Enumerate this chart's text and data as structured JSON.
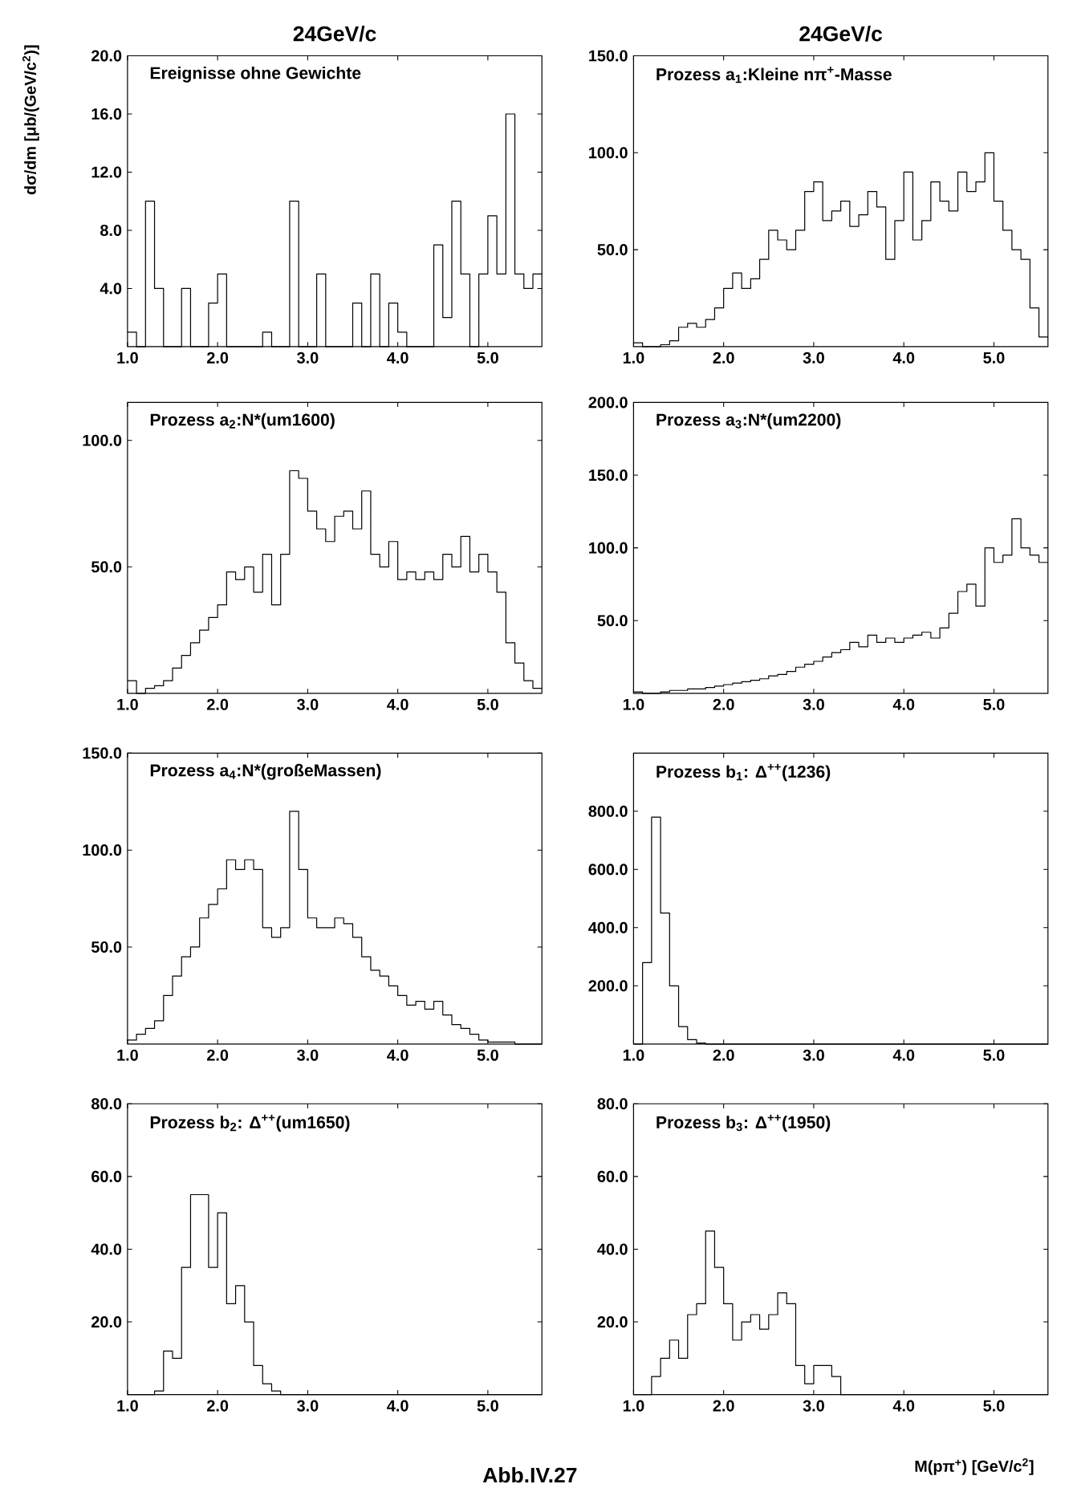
{
  "chart_data": [
    {
      "type": "histogram",
      "title": "Ereignisse ohne Gewichte",
      "ylabel": "dσ/dm [μb/(GeV/c$^{2}$)]",
      "annotations": [
        "24GeV/c"
      ],
      "bins": [
        1.0,
        1.1,
        1.2,
        1.3,
        1.4,
        1.5,
        1.6,
        1.7,
        1.8,
        1.9,
        2.0,
        2.1,
        2.2,
        2.3,
        2.4,
        2.5,
        2.6,
        2.7,
        2.8,
        2.9,
        3.0,
        3.1,
        3.2,
        3.3,
        3.4,
        3.5,
        3.6,
        3.7,
        3.8,
        3.9,
        4.0,
        4.1,
        4.2,
        4.3,
        4.4,
        4.5,
        4.6,
        4.7,
        4.8,
        4.9,
        5.0,
        5.1,
        5.2,
        5.3,
        5.4,
        5.5,
        5.6
      ],
      "values": [
        1,
        0,
        10,
        4,
        0,
        0,
        4,
        0,
        0,
        3,
        5,
        0,
        0,
        0,
        0,
        1,
        0,
        0,
        10,
        0,
        0,
        5,
        0,
        0,
        0,
        3,
        0,
        5,
        0,
        3,
        1,
        0,
        0,
        0,
        7,
        2,
        10,
        5,
        0,
        5,
        9,
        5,
        16,
        5,
        4,
        5
      ],
      "xlim": [
        1.0,
        5.6
      ],
      "ylim": [
        0,
        20
      ],
      "xticks": [
        {
          "value": 1,
          "label": "1.0"
        },
        {
          "value": 2,
          "label": "2.0"
        },
        {
          "value": 3,
          "label": "3.0"
        },
        {
          "value": 4,
          "label": "4.0"
        },
        {
          "value": 5,
          "label": "5.0"
        }
      ],
      "yticks": [
        {
          "value": 4,
          "label": "4.0"
        },
        {
          "value": 8,
          "label": "8.0"
        },
        {
          "value": 12,
          "label": "12.0"
        },
        {
          "value": 16,
          "label": "16.0"
        },
        {
          "value": 20,
          "label": "20.0"
        }
      ]
    },
    {
      "type": "histogram",
      "title": "Prozess a$_{1}$:Kleine nπ$^{+}$-Masse",
      "annotations": [
        "24GeV/c"
      ],
      "bins": [
        1.0,
        1.1,
        1.2,
        1.3,
        1.4,
        1.5,
        1.6,
        1.7,
        1.8,
        1.9,
        2.0,
        2.1,
        2.2,
        2.3,
        2.4,
        2.5,
        2.6,
        2.7,
        2.8,
        2.9,
        3.0,
        3.1,
        3.2,
        3.3,
        3.4,
        3.5,
        3.6,
        3.7,
        3.8,
        3.9,
        4.0,
        4.1,
        4.2,
        4.3,
        4.4,
        4.5,
        4.6,
        4.7,
        4.8,
        4.9,
        5.0,
        5.1,
        5.2,
        5.3,
        5.4,
        5.5,
        5.6
      ],
      "values": [
        2,
        0,
        0,
        1,
        3,
        10,
        12,
        10,
        14,
        20,
        30,
        38,
        30,
        35,
        45,
        60,
        55,
        50,
        60,
        80,
        85,
        65,
        70,
        75,
        62,
        68,
        80,
        72,
        45,
        65,
        90,
        55,
        65,
        85,
        75,
        70,
        90,
        80,
        85,
        100,
        75,
        60,
        50,
        45,
        20,
        5
      ],
      "xlim": [
        1.0,
        5.6
      ],
      "ylim": [
        0,
        150
      ],
      "xticks": [
        {
          "value": 1,
          "label": "1.0"
        },
        {
          "value": 2,
          "label": "2.0"
        },
        {
          "value": 3,
          "label": "3.0"
        },
        {
          "value": 4,
          "label": "4.0"
        },
        {
          "value": 5,
          "label": "5.0"
        }
      ],
      "yticks": [
        {
          "value": 50,
          "label": "50.0"
        },
        {
          "value": 100,
          "label": "100.0"
        },
        {
          "value": 150,
          "label": "150.0"
        }
      ]
    },
    {
      "type": "histogram",
      "title": "Prozess a$_{2}$:N*(um1600)",
      "bins": [
        1.0,
        1.1,
        1.2,
        1.3,
        1.4,
        1.5,
        1.6,
        1.7,
        1.8,
        1.9,
        2.0,
        2.1,
        2.2,
        2.3,
        2.4,
        2.5,
        2.6,
        2.7,
        2.8,
        2.9,
        3.0,
        3.1,
        3.2,
        3.3,
        3.4,
        3.5,
        3.6,
        3.7,
        3.8,
        3.9,
        4.0,
        4.1,
        4.2,
        4.3,
        4.4,
        4.5,
        4.6,
        4.7,
        4.8,
        4.9,
        5.0,
        5.1,
        5.2,
        5.3,
        5.4,
        5.5,
        5.6
      ],
      "values": [
        5,
        0,
        2,
        3,
        5,
        10,
        15,
        20,
        25,
        30,
        35,
        48,
        45,
        50,
        40,
        55,
        35,
        55,
        88,
        85,
        72,
        65,
        60,
        70,
        72,
        65,
        80,
        55,
        50,
        60,
        45,
        48,
        45,
        48,
        45,
        55,
        50,
        62,
        48,
        55,
        48,
        40,
        20,
        12,
        5,
        2
      ],
      "xlim": [
        1.0,
        5.6
      ],
      "ylim": [
        0,
        115
      ],
      "xticks": [
        {
          "value": 1,
          "label": "1.0"
        },
        {
          "value": 2,
          "label": "2.0"
        },
        {
          "value": 3,
          "label": "3.0"
        },
        {
          "value": 4,
          "label": "4.0"
        },
        {
          "value": 5,
          "label": "5.0"
        }
      ],
      "yticks": [
        {
          "value": 50,
          "label": "50.0"
        },
        {
          "value": 100,
          "label": "100.0"
        }
      ]
    },
    {
      "type": "histogram",
      "title": "Prozess a$_{3}$:N*(um2200)",
      "bins": [
        1.0,
        1.1,
        1.2,
        1.3,
        1.4,
        1.5,
        1.6,
        1.7,
        1.8,
        1.9,
        2.0,
        2.1,
        2.2,
        2.3,
        2.4,
        2.5,
        2.6,
        2.7,
        2.8,
        2.9,
        3.0,
        3.1,
        3.2,
        3.3,
        3.4,
        3.5,
        3.6,
        3.7,
        3.8,
        3.9,
        4.0,
        4.1,
        4.2,
        4.3,
        4.4,
        4.5,
        4.6,
        4.7,
        4.8,
        4.9,
        5.0,
        5.1,
        5.2,
        5.3,
        5.4,
        5.5,
        5.6
      ],
      "values": [
        1,
        0,
        0,
        1,
        2,
        2,
        3,
        3,
        4,
        5,
        6,
        7,
        8,
        9,
        10,
        12,
        13,
        15,
        18,
        20,
        22,
        25,
        28,
        30,
        35,
        32,
        40,
        35,
        38,
        35,
        38,
        40,
        42,
        38,
        45,
        55,
        70,
        75,
        60,
        100,
        90,
        95,
        120,
        100,
        95,
        90
      ],
      "xlim": [
        1.0,
        5.6
      ],
      "ylim": [
        0,
        200
      ],
      "xticks": [
        {
          "value": 1,
          "label": "1.0"
        },
        {
          "value": 2,
          "label": "2.0"
        },
        {
          "value": 3,
          "label": "3.0"
        },
        {
          "value": 4,
          "label": "4.0"
        },
        {
          "value": 5,
          "label": "5.0"
        }
      ],
      "yticks": [
        {
          "value": 50,
          "label": "50.0"
        },
        {
          "value": 100,
          "label": "100.0"
        },
        {
          "value": 150,
          "label": "150.0"
        },
        {
          "value": 200,
          "label": "200.0"
        }
      ]
    },
    {
      "type": "histogram",
      "title": "Prozess a$_{4}$:N*(großeMassen)",
      "bins": [
        1.0,
        1.1,
        1.2,
        1.3,
        1.4,
        1.5,
        1.6,
        1.7,
        1.8,
        1.9,
        2.0,
        2.1,
        2.2,
        2.3,
        2.4,
        2.5,
        2.6,
        2.7,
        2.8,
        2.9,
        3.0,
        3.1,
        3.2,
        3.3,
        3.4,
        3.5,
        3.6,
        3.7,
        3.8,
        3.9,
        4.0,
        4.1,
        4.2,
        4.3,
        4.4,
        4.5,
        4.6,
        4.7,
        4.8,
        4.9,
        5.0,
        5.1,
        5.2,
        5.3,
        5.4,
        5.5,
        5.6
      ],
      "values": [
        2,
        5,
        8,
        12,
        25,
        35,
        45,
        50,
        65,
        72,
        80,
        95,
        90,
        95,
        90,
        60,
        55,
        60,
        120,
        90,
        65,
        60,
        60,
        65,
        62,
        55,
        45,
        38,
        35,
        30,
        25,
        20,
        22,
        18,
        22,
        15,
        10,
        8,
        5,
        2,
        1,
        1,
        1,
        0,
        0,
        0
      ],
      "xlim": [
        1.0,
        5.6
      ],
      "ylim": [
        0,
        150
      ],
      "xticks": [
        {
          "value": 1,
          "label": "1.0"
        },
        {
          "value": 2,
          "label": "2.0"
        },
        {
          "value": 3,
          "label": "3.0"
        },
        {
          "value": 4,
          "label": "4.0"
        },
        {
          "value": 5,
          "label": "5.0"
        }
      ],
      "yticks": [
        {
          "value": 50,
          "label": "50.0"
        },
        {
          "value": 100,
          "label": "100.0"
        },
        {
          "value": 150,
          "label": "150.0"
        }
      ]
    },
    {
      "type": "histogram",
      "title": "Prozess b$_{1}$: Δ$^{++}$(1236)",
      "bins": [
        1.0,
        1.1,
        1.2,
        1.3,
        1.4,
        1.5,
        1.6,
        1.7,
        1.8,
        1.9,
        2.0,
        2.1,
        2.2,
        2.3,
        2.4,
        2.5,
        2.6,
        2.7,
        2.8,
        2.9,
        3.0,
        3.1,
        3.2,
        3.3,
        3.4,
        3.5,
        3.6,
        3.7,
        3.8,
        3.9,
        4.0,
        4.1,
        4.2,
        4.3,
        4.4,
        4.5,
        4.6,
        4.7,
        4.8,
        4.9,
        5.0,
        5.1,
        5.2,
        5.3,
        5.4,
        5.5,
        5.6
      ],
      "values": [
        0,
        280,
        780,
        450,
        200,
        60,
        15,
        3,
        0,
        0,
        0,
        0,
        0,
        0,
        0,
        0,
        0,
        0,
        0,
        0,
        0,
        0,
        0,
        0,
        0,
        0,
        0,
        0,
        0,
        0,
        0,
        0,
        0,
        0,
        0,
        0,
        0,
        0,
        0,
        0,
        0,
        0,
        0,
        0,
        0,
        0
      ],
      "xlim": [
        1.0,
        5.6
      ],
      "ylim": [
        0,
        1000
      ],
      "xticks": [
        {
          "value": 1,
          "label": "1.0"
        },
        {
          "value": 2,
          "label": "2.0"
        },
        {
          "value": 3,
          "label": "3.0"
        },
        {
          "value": 4,
          "label": "4.0"
        },
        {
          "value": 5,
          "label": "5.0"
        }
      ],
      "yticks": [
        {
          "value": 200,
          "label": "200.0"
        },
        {
          "value": 400,
          "label": "400.0"
        },
        {
          "value": 600,
          "label": "600.0"
        },
        {
          "value": 800,
          "label": "800.0"
        }
      ]
    },
    {
      "type": "histogram",
      "title": "Prozess b$_{2}$: Δ$^{++}$(um1650)",
      "bins": [
        1.0,
        1.1,
        1.2,
        1.3,
        1.4,
        1.5,
        1.6,
        1.7,
        1.8,
        1.9,
        2.0,
        2.1,
        2.2,
        2.3,
        2.4,
        2.5,
        2.6,
        2.7,
        2.8,
        2.9,
        3.0,
        3.1,
        3.2,
        3.3,
        3.4,
        3.5,
        3.6,
        3.7,
        3.8,
        3.9,
        4.0,
        4.1,
        4.2,
        4.3,
        4.4,
        4.5,
        4.6,
        4.7,
        4.8,
        4.9,
        5.0,
        5.1,
        5.2,
        5.3,
        5.4,
        5.5,
        5.6
      ],
      "values": [
        0,
        0,
        0,
        1,
        12,
        10,
        35,
        55,
        55,
        35,
        50,
        25,
        30,
        20,
        8,
        3,
        1,
        0,
        0,
        0,
        0,
        0,
        0,
        0,
        0,
        0,
        0,
        0,
        0,
        0,
        0,
        0,
        0,
        0,
        0,
        0,
        0,
        0,
        0,
        0,
        0,
        0,
        0,
        0,
        0,
        0
      ],
      "xlim": [
        1.0,
        5.6
      ],
      "ylim": [
        0,
        80
      ],
      "xticks": [
        {
          "value": 1,
          "label": "1.0"
        },
        {
          "value": 2,
          "label": "2.0"
        },
        {
          "value": 3,
          "label": "3.0"
        },
        {
          "value": 4,
          "label": "4.0"
        },
        {
          "value": 5,
          "label": "5.0"
        }
      ],
      "yticks": [
        {
          "value": 20,
          "label": "20.0"
        },
        {
          "value": 40,
          "label": "40.0"
        },
        {
          "value": 60,
          "label": "60.0"
        },
        {
          "value": 80,
          "label": "80.0"
        }
      ]
    },
    {
      "type": "histogram",
      "title": "Prozess b$_{3}$: Δ$^{++}$(1950)",
      "xlabel": "M(pπ$^{+}$) [GeV/c$^{2}$]",
      "annotations": [
        "Abb.IV.27"
      ],
      "bins": [
        1.0,
        1.1,
        1.2,
        1.3,
        1.4,
        1.5,
        1.6,
        1.7,
        1.8,
        1.9,
        2.0,
        2.1,
        2.2,
        2.3,
        2.4,
        2.5,
        2.6,
        2.7,
        2.8,
        2.9,
        3.0,
        3.1,
        3.2,
        3.3,
        3.4,
        3.5,
        3.6,
        3.7,
        3.8,
        3.9,
        4.0,
        4.1,
        4.2,
        4.3,
        4.4,
        4.5,
        4.6,
        4.7,
        4.8,
        4.9,
        5.0,
        5.1,
        5.2,
        5.3,
        5.4,
        5.5,
        5.6
      ],
      "values": [
        0,
        0,
        5,
        10,
        15,
        10,
        22,
        25,
        45,
        35,
        25,
        15,
        20,
        22,
        18,
        22,
        28,
        25,
        8,
        3,
        8,
        8,
        5,
        0,
        0,
        0,
        0,
        0,
        0,
        0,
        0,
        0,
        0,
        0,
        0,
        0,
        0,
        0,
        0,
        0,
        0,
        0,
        0,
        0,
        0,
        0
      ],
      "xlim": [
        1.0,
        5.6
      ],
      "ylim": [
        0,
        80
      ],
      "xticks": [
        {
          "value": 1,
          "label": "1.0"
        },
        {
          "value": 2,
          "label": "2.0"
        },
        {
          "value": 3,
          "label": "3.0"
        },
        {
          "value": 4,
          "label": "4.0"
        },
        {
          "value": 5,
          "label": "5.0"
        }
      ],
      "yticks": [
        {
          "value": 20,
          "label": "20.0"
        },
        {
          "value": 40,
          "label": "40.0"
        },
        {
          "value": 60,
          "label": "60.0"
        },
        {
          "value": 80,
          "label": "80.0"
        }
      ]
    }
  ]
}
